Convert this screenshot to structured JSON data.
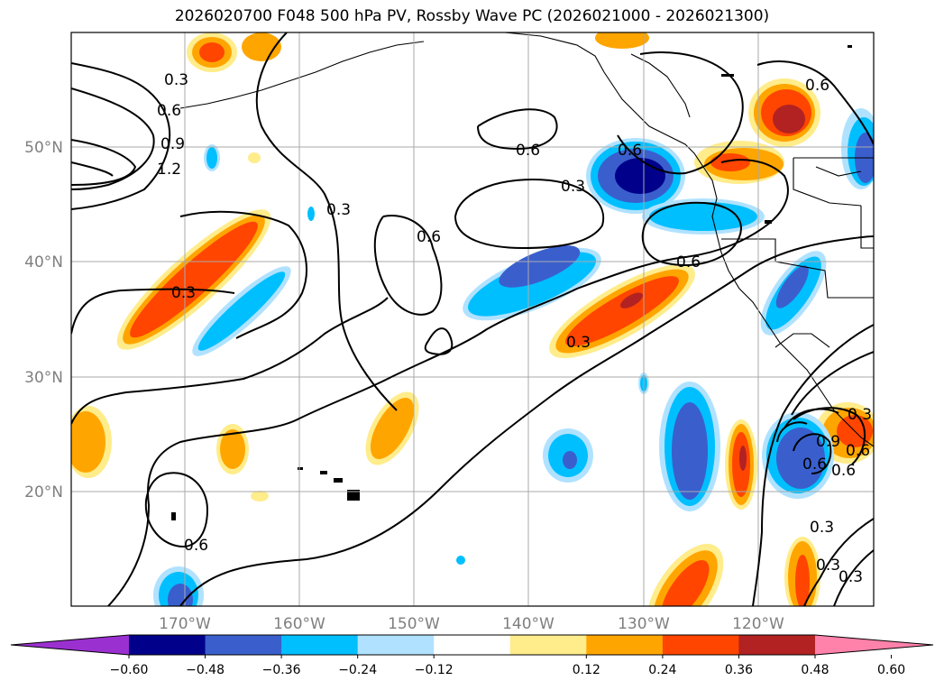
{
  "title": "2026020700 F048 500 hPa PV, Rossby Wave PC (2026021000 - 2026021300)",
  "map": {
    "lat_labels": [
      "50°N",
      "40°N",
      "30°N",
      "20°N"
    ],
    "lon_labels": [
      "170°W",
      "160°W",
      "150°W",
      "140°W",
      "130°W",
      "120°W"
    ],
    "contour_labels": [
      "0.3",
      "0.6",
      "0.9",
      "1.2",
      "0.6",
      "0.3",
      "0.6",
      "0.3",
      "0.6",
      "0.3",
      "0.6",
      "0.3",
      "0.6",
      "0.6",
      "0.3",
      "0.3",
      "0.3",
      "0.6",
      "0.6",
      "0.3",
      "0.9",
      "0.6"
    ]
  },
  "colorbar": {
    "ticks": [
      "−0.60",
      "−0.48",
      "−0.36",
      "−0.24",
      "−0.12",
      "0.12",
      "0.24",
      "0.36",
      "0.48",
      "0.60"
    ],
    "colors": [
      "#9b30d0",
      "#00008b",
      "#3a5fcd",
      "#00bfff",
      "#b0e2ff",
      "#ffffff",
      "#ffec8b",
      "#ffa500",
      "#ff4500",
      "#b22222",
      "#ff82ab"
    ]
  }
}
